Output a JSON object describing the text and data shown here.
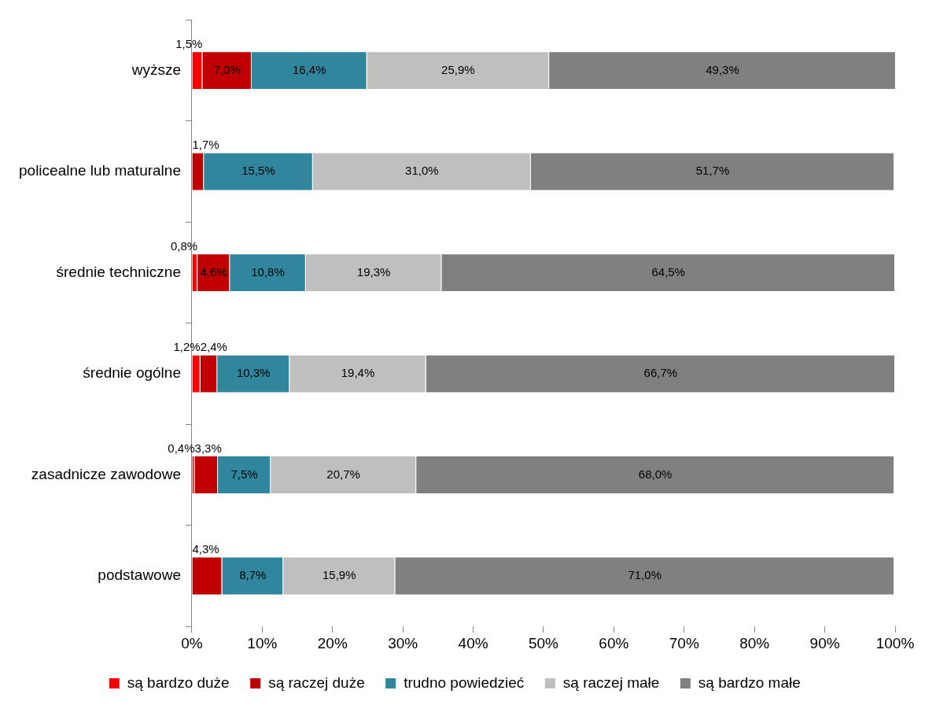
{
  "chart_data": {
    "type": "bar",
    "orientation": "horizontal",
    "stacked": true,
    "categories": [
      "wyższe",
      "policealne lub maturalne",
      "średnie techniczne",
      "średnie ogólne",
      "zasadnicze zawodowe",
      "podstawowe"
    ],
    "series": [
      {
        "name": "są bardzo duże",
        "color": "#ff0000",
        "values": [
          1.5,
          null,
          0.8,
          1.2,
          0.4,
          null
        ],
        "value_labels": [
          "1,5%",
          null,
          "0,8%",
          "1,2%",
          "0,4%",
          null
        ]
      },
      {
        "name": "są raczej duże",
        "color": "#c00000",
        "values": [
          7.0,
          1.7,
          4.6,
          2.4,
          3.3,
          4.3
        ],
        "value_labels": [
          "7,0%",
          "1,7%",
          "4,6%",
          "2,4%",
          "3,3%",
          "4,3%"
        ]
      },
      {
        "name": "trudno powiedzieć",
        "color": "#31859c",
        "values": [
          16.4,
          15.5,
          10.8,
          10.3,
          7.5,
          8.7
        ],
        "value_labels": [
          "16,4%",
          "15,5%",
          "10,8%",
          "10,3%",
          "7,5%",
          "8,7%"
        ]
      },
      {
        "name": "są raczej małe",
        "color": "#bfbfbf",
        "values": [
          25.9,
          31.0,
          19.3,
          19.4,
          20.7,
          15.9
        ],
        "value_labels": [
          "25,9%",
          "31,0%",
          "19,3%",
          "19,4%",
          "20,7%",
          "15,9%"
        ]
      },
      {
        "name": "są bardzo małe",
        "color": "#808080",
        "values": [
          49.3,
          51.7,
          64.5,
          66.7,
          68.0,
          71.0
        ],
        "value_labels": [
          "49,3%",
          "51,7%",
          "64,5%",
          "66,7%",
          "68,0%",
          "71,0%"
        ]
      }
    ],
    "xlim": [
      0,
      100
    ],
    "xticks": [
      {
        "value": 0,
        "label": "0%"
      },
      {
        "value": 10,
        "label": "10%"
      },
      {
        "value": 20,
        "label": "20%"
      },
      {
        "value": 30,
        "label": "30%"
      },
      {
        "value": 40,
        "label": "40%"
      },
      {
        "value": 50,
        "label": "50%"
      },
      {
        "value": 60,
        "label": "60%"
      },
      {
        "value": 70,
        "label": "70%"
      },
      {
        "value": 80,
        "label": "80%"
      },
      {
        "value": 90,
        "label": "90%"
      },
      {
        "value": 100,
        "label": "100%"
      }
    ],
    "legend": "bottom",
    "grid": false
  }
}
